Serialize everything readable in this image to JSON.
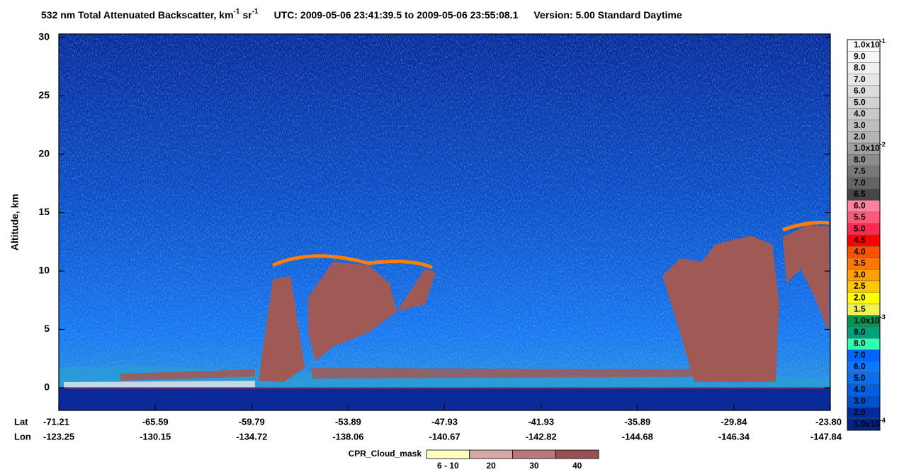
{
  "chart_data": {
    "type": "curtain",
    "title": {
      "main": "532 nm Total Attenuated Backscatter, km",
      "exp1": "-1",
      "unit2": "sr",
      "exp2": "-1",
      "time": "UTC:  2009-05-06 23:41:39.5  to  2009-05-06 23:55:08.1",
      "version": "Version: 5.00  Standard  Daytime"
    },
    "y_label": "Altitude, km",
    "ylim": [
      -1.94,
      30.3
    ],
    "yticks": [
      0,
      5,
      10,
      15,
      20,
      25,
      30
    ],
    "lat_title": "Lat",
    "lon_title": "Lon",
    "lat": [
      "-71.21",
      "-65.59",
      "-59.79",
      "-53.89",
      "-47.93",
      "-41.93",
      "-35.89",
      "-29.84",
      "-23.80"
    ],
    "lon": [
      "-123.25",
      "-130.15",
      "-134.72",
      "-138.06",
      "-140.67",
      "-142.82",
      "-144.68",
      "-146.34",
      "-147.84"
    ],
    "colorbar": [
      {
        "label": "1.0x10",
        "exp": "-1",
        "color": "#ffffff"
      },
      {
        "label": "9.0",
        "color": "#f7f7f7"
      },
      {
        "label": "8.0",
        "color": "#efefef"
      },
      {
        "label": "7.0",
        "color": "#e6e6e6"
      },
      {
        "label": "6.0",
        "color": "#dcdcdc"
      },
      {
        "label": "5.0",
        "color": "#d2d2d2"
      },
      {
        "label": "4.0",
        "color": "#c8c8c8"
      },
      {
        "label": "3.0",
        "color": "#bebebe"
      },
      {
        "label": "2.0",
        "color": "#b4b4b4"
      },
      {
        "label": "1.0x10",
        "exp": "-2",
        "color": "#a0a0a0"
      },
      {
        "label": "8.0",
        "color": "#8c8c8c"
      },
      {
        "label": "7.5",
        "color": "#787878"
      },
      {
        "label": "7.0",
        "color": "#646464"
      },
      {
        "label": "6.5",
        "color": "#464646"
      },
      {
        "label": "6.0",
        "color": "#ff80a0"
      },
      {
        "label": "5.5",
        "color": "#ff5a78"
      },
      {
        "label": "5.0",
        "color": "#ff2850"
      },
      {
        "label": "4.5",
        "color": "#ff0000"
      },
      {
        "label": "4.0",
        "color": "#ff5000"
      },
      {
        "label": "3.5",
        "color": "#ff7800"
      },
      {
        "label": "3.0",
        "color": "#ffa000"
      },
      {
        "label": "2.5",
        "color": "#ffc800"
      },
      {
        "label": "2.0",
        "color": "#ffff00"
      },
      {
        "label": "1.5",
        "color": "#f0f050"
      },
      {
        "label": "1.0x10",
        "exp": "-3",
        "color": "#009650"
      },
      {
        "label": "9.0",
        "color": "#00a080"
      },
      {
        "label": "8.0",
        "color": "#30ffb0"
      },
      {
        "label": "7.0",
        "color": "#0064ff"
      },
      {
        "label": "6.0",
        "color": "#0a78ff"
      },
      {
        "label": "5.0",
        "color": "#0a6ef0"
      },
      {
        "label": "4.0",
        "color": "#0060e0"
      },
      {
        "label": "3.0",
        "color": "#0050c8"
      },
      {
        "label": "2.0",
        "color": "#002aa0"
      },
      {
        "label": "1.0x10",
        "exp": "-4",
        "color": "#00228c"
      }
    ],
    "cpr_title": "CPR_Cloud_mask",
    "cpr": [
      {
        "label": "6 - 10",
        "color": "#ffffc0"
      },
      {
        "label": "20",
        "color": "#d8a8a8"
      },
      {
        "label": "30",
        "color": "#b87878"
      },
      {
        "label": "40",
        "color": "#965050"
      }
    ]
  }
}
